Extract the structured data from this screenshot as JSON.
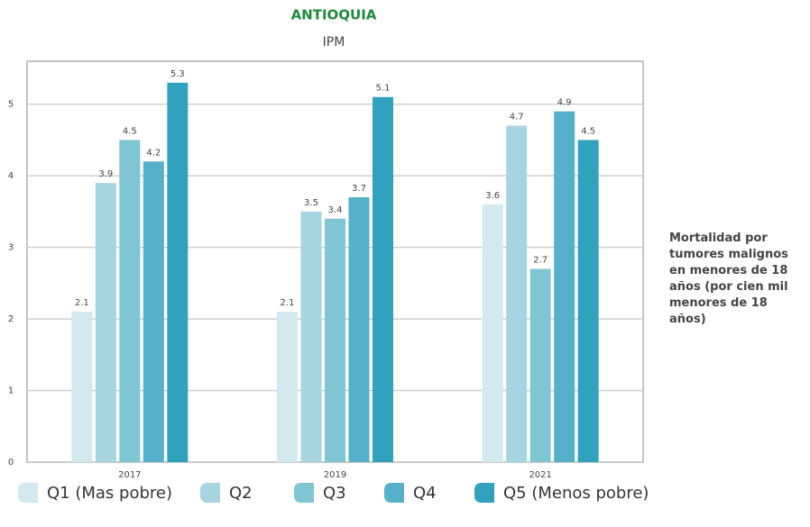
{
  "chart_data": {
    "type": "bar",
    "title": "ANTIOQUIA",
    "subtitle": "IPM",
    "annotation": "Mortalidad por tumores malignos en menores de 18 años (por cien mil menores de 18 años)",
    "categories": [
      "2017",
      "2019",
      "2021"
    ],
    "series": [
      {
        "name": "Q1 (Mas pobre)",
        "color": "#d2e9ef",
        "values": [
          2.1,
          2.1,
          3.6
        ]
      },
      {
        "name": "Q2",
        "color": "#a6d5e1",
        "values": [
          3.9,
          3.5,
          4.7
        ]
      },
      {
        "name": "Q3",
        "color": "#80c5d3",
        "values": [
          4.5,
          3.4,
          2.7
        ]
      },
      {
        "name": "Q4",
        "color": "#55b1c9",
        "values": [
          4.2,
          3.7,
          4.9
        ]
      },
      {
        "name": "Q5 (Menos pobre)",
        "color": "#30a2bd",
        "values": [
          5.3,
          5.1,
          4.5
        ]
      }
    ],
    "ylim": [
      0,
      5.6
    ],
    "yticks": [
      0,
      1,
      2,
      3,
      4,
      5
    ],
    "grid": true,
    "legend": "bottom"
  }
}
